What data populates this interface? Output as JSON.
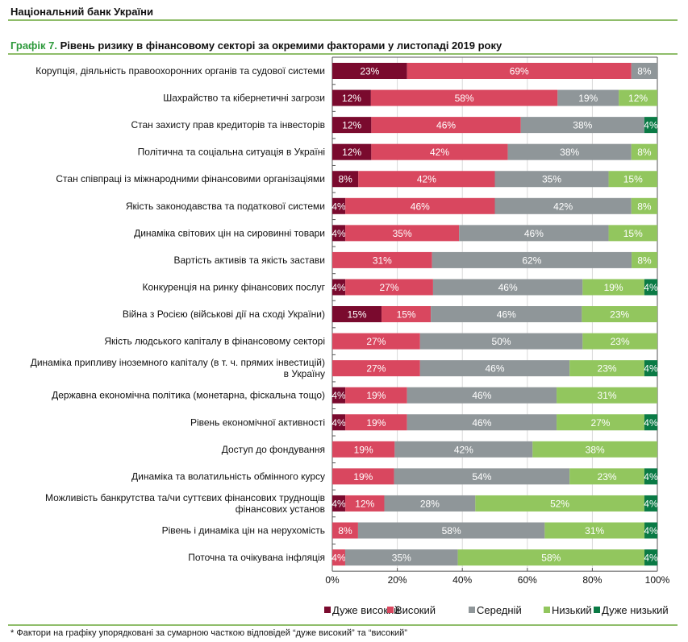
{
  "header": {
    "org": "Національний банк України"
  },
  "chart_data": {
    "type": "bar",
    "orientation": "horizontal-stacked-100",
    "title_prefix": "Графік 7.",
    "title": "Рівень ризику в фінансовому секторі за окремими факторами у листопаді 2019 року",
    "xlim": [
      0,
      100
    ],
    "x_ticks": [
      "0%",
      "20%",
      "40%",
      "60%",
      "80%",
      "100%"
    ],
    "legend_position": "bottom",
    "series": [
      {
        "name": "Дуже високий",
        "color": "#7a0a2e",
        "values": [
          23,
          12,
          12,
          12,
          8,
          4,
          4,
          0,
          4,
          15,
          0,
          0,
          4,
          4,
          0,
          0,
          4,
          0,
          0
        ]
      },
      {
        "name": "Високий",
        "color": "#d9475f",
        "values": [
          69,
          58,
          46,
          42,
          42,
          46,
          35,
          31,
          27,
          15,
          27,
          27,
          19,
          19,
          19,
          19,
          12,
          8,
          4
        ]
      },
      {
        "name": "Середній",
        "color": "#8f9699",
        "values": [
          8,
          19,
          38,
          38,
          35,
          42,
          46,
          62,
          46,
          46,
          50,
          46,
          46,
          46,
          42,
          54,
          28,
          58,
          35
        ]
      },
      {
        "name": "Низький",
        "color": "#92c65e",
        "values": [
          0,
          12,
          0,
          8,
          15,
          8,
          15,
          8,
          19,
          23,
          23,
          23,
          31,
          27,
          38,
          23,
          52,
          31,
          58
        ]
      },
      {
        "name": "Дуже низький",
        "color": "#0a7a45",
        "values": [
          0,
          0,
          4,
          0,
          0,
          0,
          0,
          0,
          4,
          0,
          0,
          4,
          0,
          4,
          0,
          4,
          4,
          4,
          4
        ]
      }
    ],
    "categories": [
      [
        "Корупція, діяльність правоохоронних органів та судової системи"
      ],
      [
        "Шахрайство та кібернетичні загрози"
      ],
      [
        "Стан захисту прав кредиторів та інвесторів"
      ],
      [
        "Політична та соціальна ситуація в Україні"
      ],
      [
        "Стан співпраці із міжнародними фінансовими організаціями"
      ],
      [
        "Якість законодавства та податкової системи"
      ],
      [
        "Динаміка світових цін на сировинні товари"
      ],
      [
        "Вартість активів та якість застави"
      ],
      [
        "Конкуренція на ринку фінансових послуг"
      ],
      [
        "Війна з Росією (військові дії на сході України)"
      ],
      [
        "Якість людського капіталу в фінансовому секторі"
      ],
      [
        "Динаміка припливу іноземного капіталу (в т. ч. прямих інвестицій)",
        "в Україну"
      ],
      [
        "Державна економічна політика (монетарна, фіскальна тощо)"
      ],
      [
        "Рівень економічної активності"
      ],
      [
        "Доступ до фондування"
      ],
      [
        "Динаміка та волатильність обмінного курсу"
      ],
      [
        "Можливість банкрутства та/чи суттєвих фінансових труднощів",
        "фінансових установ"
      ],
      [
        "Рівень і динаміка цін на нерухомість"
      ],
      [
        "Поточна та очікувана інфляція"
      ]
    ]
  },
  "footnote": "* Фактори на графіку упорядковані за сумарною часткою відповідей “дуже високий” та “високий”"
}
